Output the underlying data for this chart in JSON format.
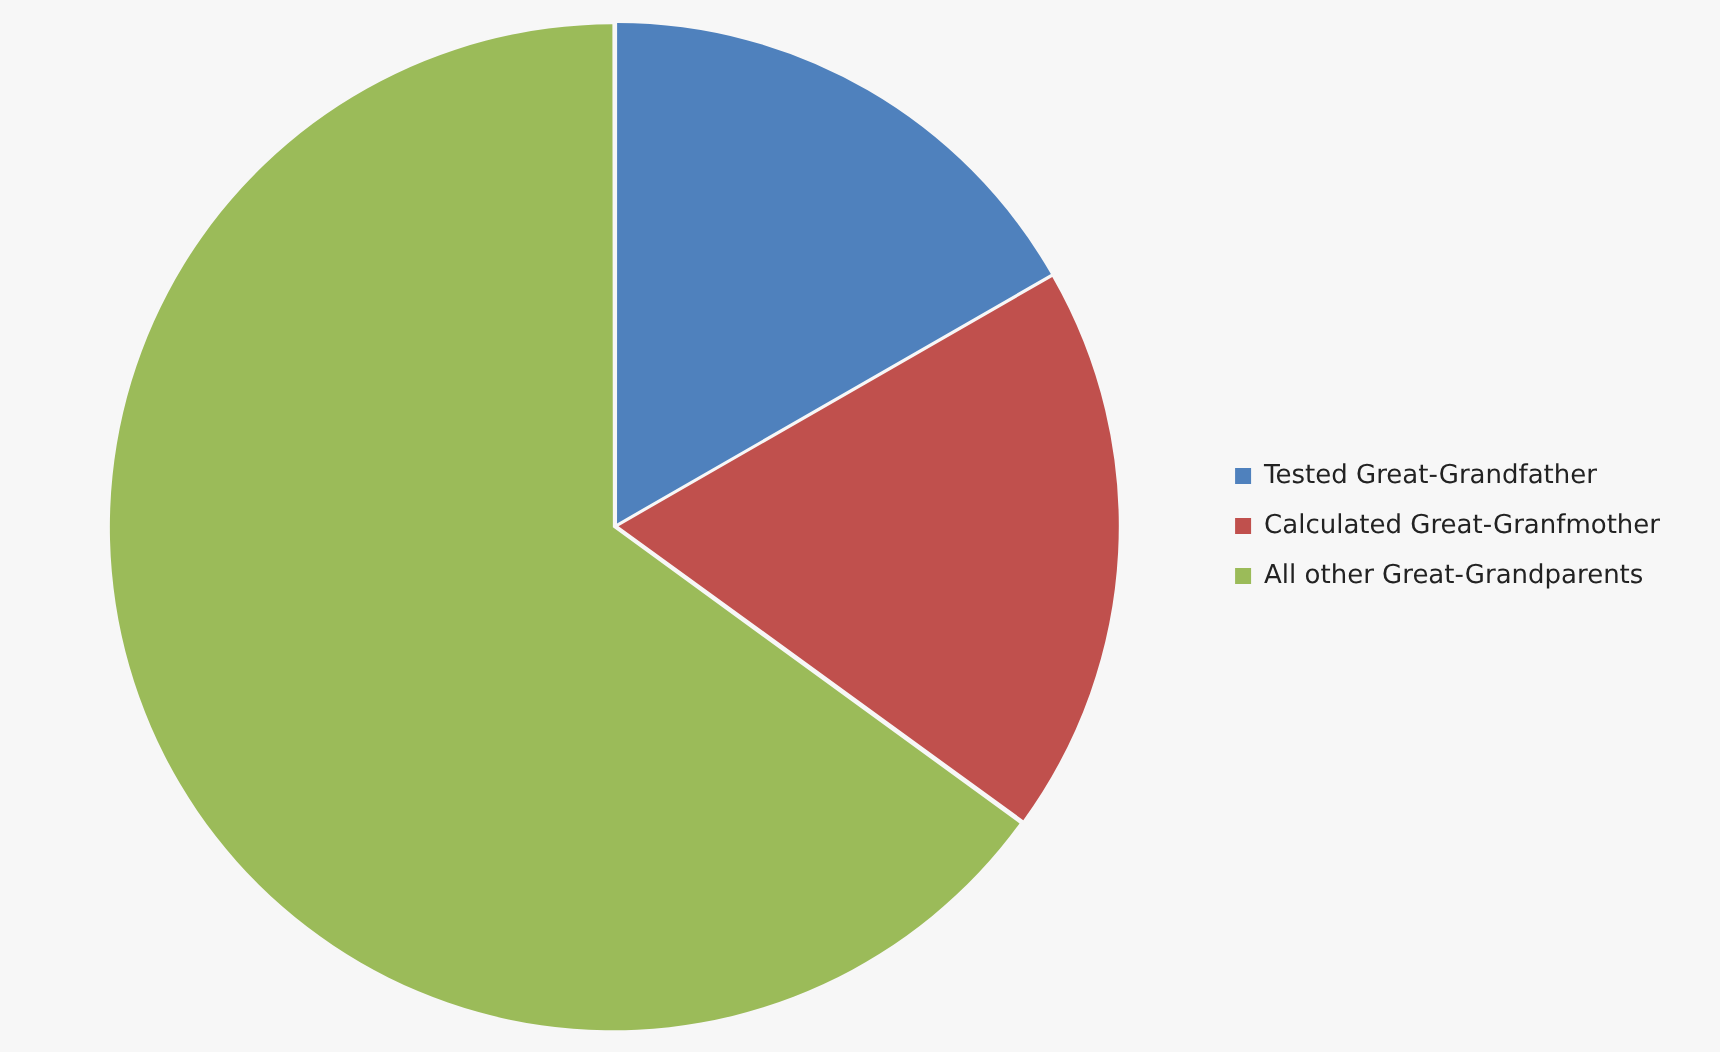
{
  "chart_data": {
    "type": "pie",
    "categories": [
      "Tested Great-Grandfather",
      "Calculated Great-Granfmother",
      "All other Great-Grandparents"
    ],
    "values": [
      16.7,
      18.3,
      65
    ],
    "colors": [
      "#4f81bd",
      "#c0504d",
      "#9bbb59"
    ],
    "legend": "right"
  }
}
